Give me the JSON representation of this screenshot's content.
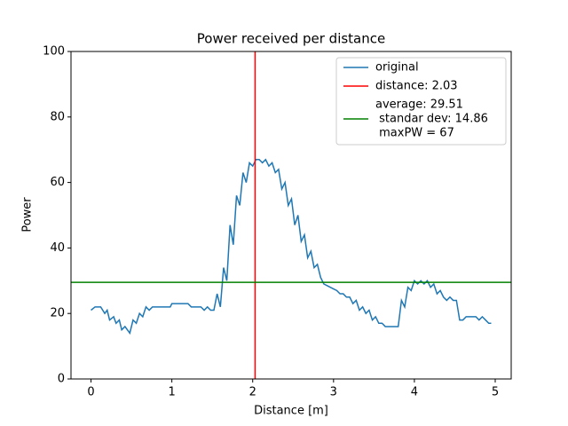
{
  "chart_data": {
    "type": "line",
    "title": "Power received per distance",
    "xlabel": "Distance [m]",
    "ylabel": "Power",
    "xlim": [
      -0.2475,
      5.1975
    ],
    "ylim": [
      0,
      100
    ],
    "xticks": [
      0,
      1,
      2,
      3,
      4,
      5
    ],
    "yticks": [
      0,
      20,
      40,
      60,
      80,
      100
    ],
    "legend": "upper right",
    "series": [
      {
        "name": "original",
        "color": "#1f77b4",
        "x": [
          0,
          0.05,
          0.12,
          0.17,
          0.2,
          0.23,
          0.28,
          0.31,
          0.35,
          0.38,
          0.42,
          0.48,
          0.52,
          0.56,
          0.6,
          0.64,
          0.68,
          0.72,
          0.76,
          0.98,
          1.0,
          1.2,
          1.24,
          1.36,
          1.4,
          1.44,
          1.48,
          1.52,
          1.56,
          1.6,
          1.64,
          1.68,
          1.72,
          1.76,
          1.8,
          1.84,
          1.88,
          1.92,
          1.96,
          2.0,
          2.04,
          2.08,
          2.12,
          2.16,
          2.2,
          2.24,
          2.28,
          2.32,
          2.36,
          2.4,
          2.44,
          2.48,
          2.52,
          2.56,
          2.6,
          2.64,
          2.68,
          2.72,
          2.76,
          2.8,
          2.84,
          2.88,
          2.92,
          2.96,
          3.0,
          3.04,
          3.08,
          3.12,
          3.16,
          3.2,
          3.24,
          3.28,
          3.32,
          3.36,
          3.4,
          3.44,
          3.48,
          3.52,
          3.56,
          3.6,
          3.64,
          3.8,
          3.84,
          3.88,
          3.92,
          3.96,
          4.0,
          4.04,
          4.08,
          4.12,
          4.16,
          4.2,
          4.24,
          4.28,
          4.32,
          4.36,
          4.4,
          4.44,
          4.48,
          4.52,
          4.56,
          4.6,
          4.64,
          4.76,
          4.8,
          4.84,
          4.88,
          4.92,
          4.95
        ],
        "values": [
          21,
          22,
          22,
          20,
          21,
          18,
          19,
          17,
          18,
          15,
          16,
          14,
          18,
          17,
          20,
          19,
          22,
          21,
          22,
          22,
          23,
          23,
          22,
          22,
          21,
          22,
          21,
          21,
          26,
          22,
          34,
          30,
          47,
          41,
          56,
          53,
          63,
          60,
          66,
          65,
          67,
          67,
          66,
          67,
          65,
          66,
          63,
          64,
          58,
          60,
          53,
          55,
          47,
          50,
          42,
          44,
          37,
          39,
          34,
          35,
          31,
          29,
          28.5,
          28,
          27.5,
          27,
          26,
          26,
          25,
          25,
          23,
          24,
          21,
          22,
          20,
          21,
          18,
          19,
          17,
          17,
          16,
          16,
          24,
          22,
          28,
          27,
          30,
          29,
          30,
          29,
          30,
          28,
          29,
          26,
          27,
          25,
          24,
          25,
          24,
          24,
          18,
          18,
          19,
          19,
          18,
          19,
          18,
          17,
          17
        ]
      }
    ],
    "vline": {
      "name": "distance: 2.03",
      "value": 2.03,
      "color": "#ff0000"
    },
    "hline": {
      "name": [
        "average: 29.51",
        " standar dev: 14.86",
        " maxPW = 67"
      ],
      "value": 29.51,
      "color": "#008000"
    }
  }
}
